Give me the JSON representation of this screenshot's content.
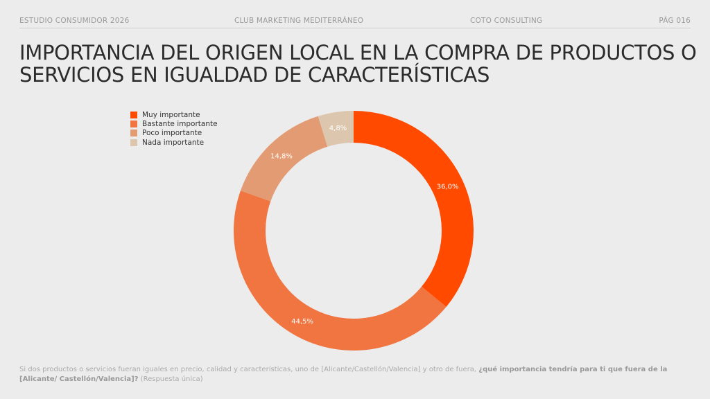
{
  "header": {
    "left": "ESTUDIO CONSUMIDOR 2026",
    "center": "CLUB MARKETING MEDITERRÁNEO",
    "right_center": "COTO CONSULTING",
    "page": "PÁG 016"
  },
  "title": "IMPORTANCIA DEL ORIGEN LOCAL EN LA COMPRA DE PRODUCTOS O SERVICIOS EN IGUALDAD DE CARACTERÍSTICAS",
  "chart_data": {
    "type": "pie",
    "variant": "donut",
    "categories": [
      "Muy importante",
      "Bastante importante",
      "Poco importante",
      "Nada importante"
    ],
    "values": [
      36.0,
      44.5,
      14.8,
      4.8
    ],
    "labels": [
      "36,0%",
      "44,5%",
      "14,8%",
      "4,8%"
    ],
    "colors": [
      "#ff4a00",
      "#f07540",
      "#e39b73",
      "#dcc7ae"
    ],
    "legend_position": "top-left",
    "start": "top",
    "direction": "clockwise"
  },
  "footnote": {
    "text": "Si dos productos o servicios fueran iguales en precio, calidad y características, uno de [Alicante/Castellón/Valencia] y otro de fuera, ",
    "question": "¿qué importancia tendría para ti que fuera de la [Alicante/ Castellón/Valencia]?",
    "note": " (Respuesta única)"
  }
}
